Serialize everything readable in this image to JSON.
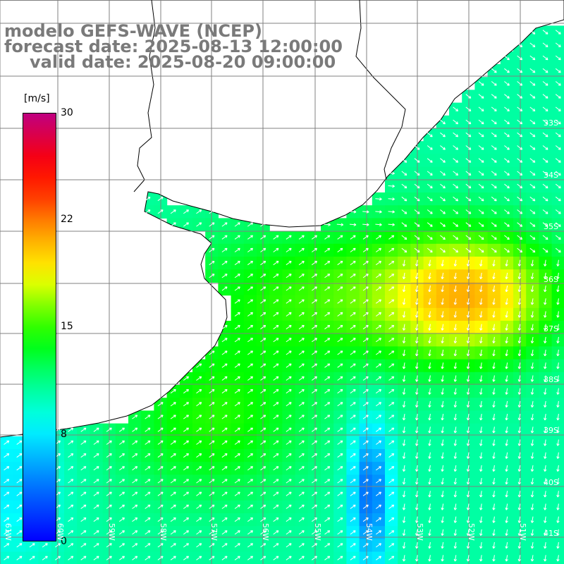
{
  "title": {
    "line1": "modelo GEFS-WAVE (NCEP)",
    "line2": "forecast date: 2025-08-13 12:00:00",
    "line3": "valid date: 2025-08-20 09:00:00"
  },
  "legend": {
    "unit": "[m/s]",
    "ticks": [
      "30",
      "22",
      "15",
      "8",
      "0"
    ],
    "tick_values": [
      30,
      22,
      15,
      8,
      0
    ],
    "colors": [
      "#c0007a",
      "#ff0000",
      "#ff7000",
      "#ffff00",
      "#00ff00",
      "#00ffff",
      "#0080ff",
      "#0000ff"
    ]
  },
  "lat_labels": [
    "33S",
    "34S",
    "35S",
    "36S",
    "37S",
    "38S",
    "39S",
    "40S",
    "41S"
  ],
  "lon_labels": [
    "61W",
    "60W",
    "59W",
    "58W",
    "57W",
    "56W",
    "55W",
    "54W",
    "53W",
    "52W",
    "51W"
  ],
  "chart_data": {
    "type": "heatmap",
    "variable": "wind speed",
    "unit": "m/s",
    "colorbar_range": [
      0,
      30
    ]
  }
}
